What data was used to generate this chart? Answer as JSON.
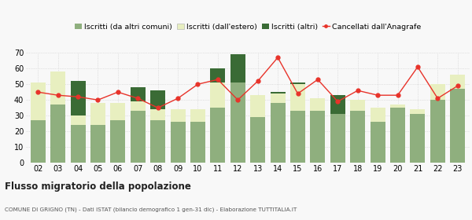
{
  "years": [
    "02",
    "03",
    "04",
    "05",
    "06",
    "07",
    "08",
    "09",
    "10",
    "11",
    "12",
    "13",
    "14",
    "15",
    "16",
    "17",
    "18",
    "19",
    "20",
    "21",
    "22",
    "23"
  ],
  "iscritti_altri_comuni": [
    27,
    37,
    24,
    24,
    27,
    33,
    27,
    26,
    26,
    35,
    51,
    29,
    38,
    33,
    33,
    31,
    33,
    26,
    35,
    31,
    40,
    47
  ],
  "iscritti_estero": [
    24,
    21,
    6,
    14,
    11,
    6,
    7,
    8,
    8,
    16,
    0,
    14,
    6,
    17,
    8,
    0,
    7,
    9,
    2,
    3,
    10,
    9
  ],
  "iscritti_altri": [
    0,
    0,
    22,
    0,
    0,
    9,
    12,
    0,
    0,
    9,
    18,
    0,
    1,
    1,
    0,
    12,
    0,
    0,
    0,
    0,
    0,
    0
  ],
  "cancellati": [
    45,
    43,
    42,
    40,
    45,
    41,
    35,
    41,
    50,
    53,
    40,
    52,
    67,
    44,
    53,
    39,
    46,
    43,
    43,
    61,
    41,
    49
  ],
  "color_altri_comuni": "#8faf7e",
  "color_estero": "#e8efc0",
  "color_altri": "#3a6b35",
  "color_cancellati": "#e8332a",
  "ylim": [
    0,
    70
  ],
  "yticks": [
    0,
    10,
    20,
    30,
    40,
    50,
    60,
    70
  ],
  "title": "Flusso migratorio della popolazione",
  "subtitle": "COMUNE DI GRIGNO (TN) - Dati ISTAT (bilancio demografico 1 gen-31 dic) - Elaborazione TUTTITALIA.IT",
  "legend_labels": [
    "Iscritti (da altri comuni)",
    "Iscritti (dall'estero)",
    "Iscritti (altri)",
    "Cancellati dall'Anagrafe"
  ],
  "bg_color": "#f8f8f8",
  "grid_color": "#cccccc"
}
